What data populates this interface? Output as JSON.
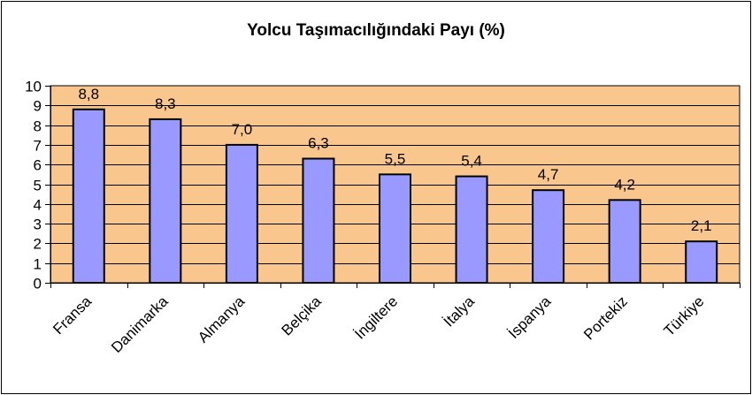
{
  "chart_data": {
    "type": "bar",
    "title": "Yolcu Taşımacılığındaki Payı (%)",
    "xlabel": "",
    "ylabel": "",
    "categories": [
      "Fransa",
      "Danimarka",
      "Almanya",
      "Belçika",
      "İngiltere",
      "İtalya",
      "İspanya",
      "Portekiz",
      "Türkiye"
    ],
    "values": [
      8.8,
      8.3,
      7.0,
      6.3,
      5.5,
      5.4,
      4.7,
      4.2,
      2.1
    ],
    "data_labels": [
      "8,8",
      "8,3",
      "7,0",
      "6,3",
      "5,5",
      "5,4",
      "4,7",
      "4,2",
      "2,1"
    ],
    "yticks": [
      "0",
      "1",
      "2",
      "3",
      "4",
      "5",
      "6",
      "7",
      "8",
      "9",
      "10"
    ],
    "ylim": [
      0,
      10
    ],
    "grid": true,
    "legend": "none",
    "colors": {
      "plot_background": "#F9C68D",
      "bar_fill": "#9999FF",
      "bar_stroke": "#000000",
      "gridline": "#000000"
    }
  }
}
